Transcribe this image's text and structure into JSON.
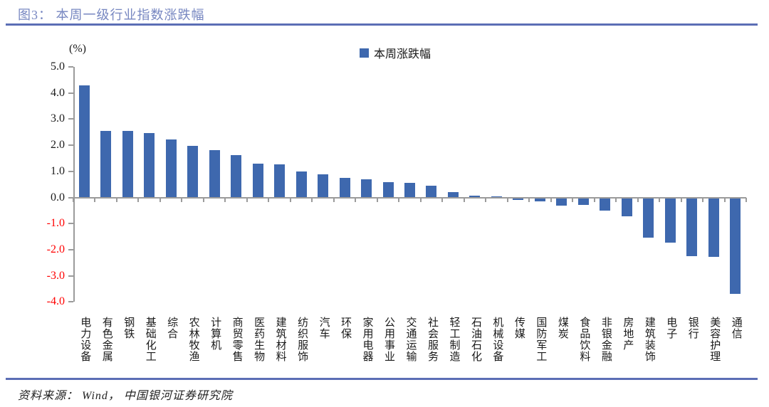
{
  "header": {
    "title": "图3： 本周一级行业指数涨跌幅"
  },
  "chart_data": {
    "type": "bar",
    "title": "本周一级行业指数涨跌幅",
    "unit_label": "(%)",
    "legend_entries": [
      "本周涨跌幅"
    ],
    "legend_position": "top-center",
    "grid": false,
    "bar_color": "#3E68AE",
    "negative_tick_color": "#FF0000",
    "ylim": [
      -4.0,
      5.0
    ],
    "ytick_labels": [
      "5.0",
      "4.0",
      "3.0",
      "2.0",
      "1.0",
      "0.0",
      "-1.0",
      "-2.0",
      "-3.0",
      "-4.0"
    ],
    "categories": [
      "电力设备",
      "有色金属",
      "钢铁",
      "基础化工",
      "综合",
      "农林牧渔",
      "计算机",
      "商贸零售",
      "医药生物",
      "建筑材料",
      "纺织服饰",
      "汽车",
      "环保",
      "家用电器",
      "公用事业",
      "交通运输",
      "社会服务",
      "轻工制造",
      "石油石化",
      "机械设备",
      "传媒",
      "国防军工",
      "煤炭",
      "食品饮料",
      "非银金融",
      "房地产",
      "建筑装饰",
      "电子",
      "银行",
      "美容护理",
      "通信"
    ],
    "values": [
      4.28,
      2.56,
      2.54,
      2.47,
      2.23,
      1.97,
      1.8,
      1.62,
      1.3,
      1.27,
      1.0,
      0.89,
      0.74,
      0.7,
      0.59,
      0.57,
      0.44,
      0.21,
      0.06,
      0.03,
      -0.07,
      -0.12,
      -0.28,
      -0.27,
      -0.48,
      -0.7,
      -1.5,
      -1.7,
      -2.21,
      -2.26,
      -3.66
    ],
    "xlabel": "",
    "ylabel": "(%)"
  },
  "footer": {
    "source": "资料来源： Wind， 中国银河证券研究院"
  },
  "colors": {
    "accent_rule": "#5B6EB5",
    "title_text": "#7787C1",
    "bar": "#3E68AE",
    "axis": "#9B9B9B",
    "negative_labels": "#FF0000"
  }
}
